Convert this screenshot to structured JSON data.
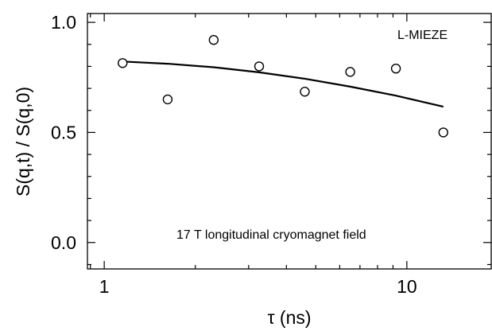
{
  "chart_data": {
    "type": "scatter",
    "title": "",
    "xlabel": "τ (ns)",
    "ylabel": "S(q,t) / S(q,0)",
    "x_scale": "log",
    "xlim": [
      0.88,
      19
    ],
    "ylim": [
      -0.12,
      1.04
    ],
    "x_major_ticks": [
      1,
      10
    ],
    "x_tick_labels": [
      "1",
      "10"
    ],
    "y_ticks": [
      0.0,
      0.5,
      1.0
    ],
    "y_tick_labels": [
      "0.0",
      "0.5",
      "1.0"
    ],
    "grid": false,
    "series": [
      {
        "kind": "points",
        "marker": "open-circle",
        "x": [
          1.15,
          1.62,
          2.3,
          3.25,
          4.6,
          6.5,
          9.2,
          13.2
        ],
        "y": [
          0.815,
          0.65,
          0.92,
          0.8,
          0.685,
          0.775,
          0.79,
          0.5
        ]
      },
      {
        "kind": "fit-line",
        "x": [
          1.15,
          1.62,
          2.3,
          3.25,
          4.6,
          6.5,
          9.2,
          13.2
        ],
        "y": [
          0.822,
          0.812,
          0.796,
          0.773,
          0.744,
          0.708,
          0.667,
          0.617
        ]
      }
    ],
    "annotations": [
      "L-MIEZE",
      "17 T longitudinal cryomagnet field"
    ]
  }
}
